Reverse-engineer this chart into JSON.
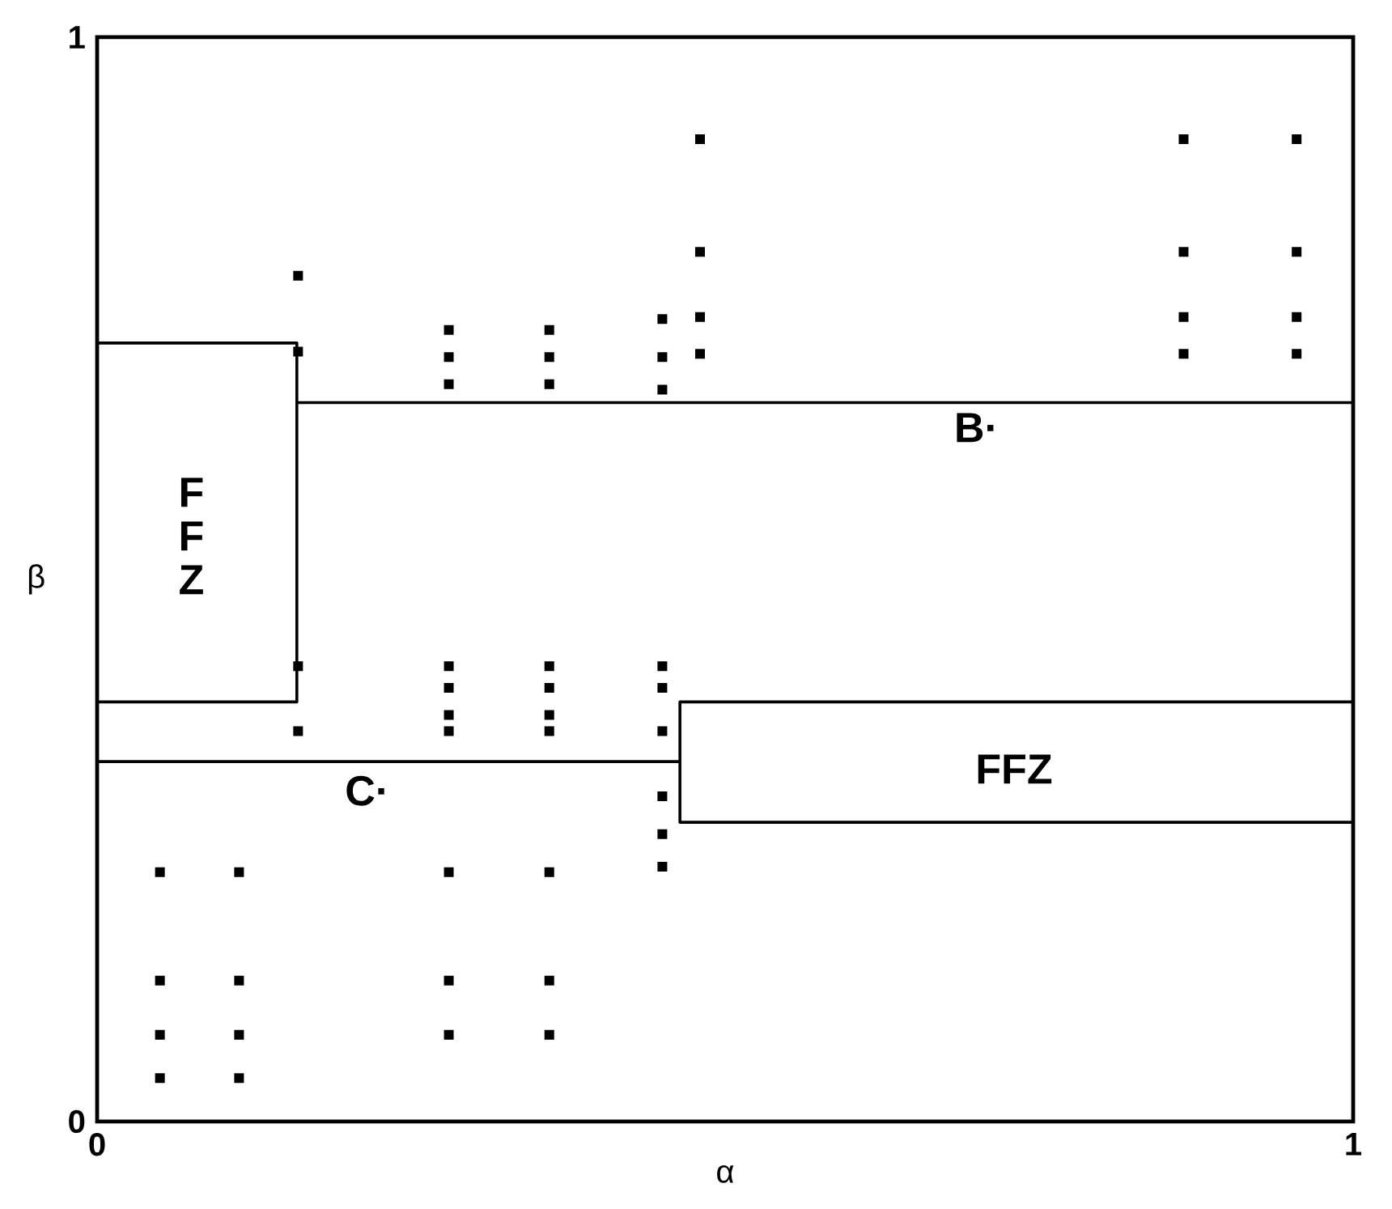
{
  "chart_data": {
    "type": "scatter",
    "xlabel": "α",
    "ylabel": "β",
    "xlim": [
      0,
      1
    ],
    "ylim": [
      0,
      1
    ],
    "xticks": [
      0,
      1
    ],
    "yticks": [
      0,
      1
    ],
    "series": [
      {
        "type": "line",
        "color": "#000000",
        "x": [
          0.159,
          1
        ],
        "values": [
          0.663,
          0.663
        ]
      },
      {
        "type": "line",
        "color": "#000000",
        "x": [
          0,
          0.159,
          0.159,
          0
        ],
        "values": [
          0.718,
          0.718,
          0.387,
          0.387
        ]
      },
      {
        "type": "line",
        "color": "#000000",
        "x": [
          0,
          0.464
        ],
        "values": [
          0.332,
          0.332
        ]
      },
      {
        "type": "line",
        "color": "#000000",
        "x": [
          1,
          0.464,
          0.464,
          1
        ],
        "values": [
          0.387,
          0.387,
          0.276,
          0.276
        ]
      },
      {
        "color": "#000000",
        "marker": "square",
        "x": [
          0.05,
          0.05,
          0.05,
          0.05,
          0.113,
          0.113,
          0.113,
          0.113,
          0.16,
          0.16,
          0.16,
          0.16,
          0.28,
          0.28,
          0.28,
          0.28,
          0.28,
          0.28,
          0.28,
          0.28,
          0.28,
          0.28,
          0.36,
          0.36,
          0.36,
          0.36,
          0.36,
          0.36,
          0.36,
          0.36,
          0.36,
          0.36,
          0.45,
          0.45,
          0.45,
          0.45,
          0.45,
          0.45,
          0.45,
          0.45,
          0.45,
          0.48,
          0.48,
          0.48,
          0.48,
          0.865,
          0.865,
          0.865,
          0.865,
          0.955,
          0.955,
          0.955,
          0.955
        ],
        "values": [
          0.23,
          0.13,
          0.08,
          0.04,
          0.23,
          0.13,
          0.08,
          0.04,
          0.78,
          0.71,
          0.42,
          0.36,
          0.73,
          0.705,
          0.68,
          0.42,
          0.4,
          0.375,
          0.36,
          0.23,
          0.13,
          0.08,
          0.73,
          0.705,
          0.68,
          0.42,
          0.4,
          0.375,
          0.36,
          0.23,
          0.13,
          0.08,
          0.74,
          0.705,
          0.675,
          0.42,
          0.4,
          0.36,
          0.3,
          0.265,
          0.235,
          0.906,
          0.802,
          0.742,
          0.708,
          0.906,
          0.802,
          0.742,
          0.708,
          0.906,
          0.802,
          0.742,
          0.708
        ]
      }
    ],
    "annotations": [
      {
        "text": "B·",
        "x": 0.7,
        "y": 0.64
      },
      {
        "text": "C·",
        "x": 0.215,
        "y": 0.305
      },
      "F F Z",
      "FFZ"
    ]
  }
}
